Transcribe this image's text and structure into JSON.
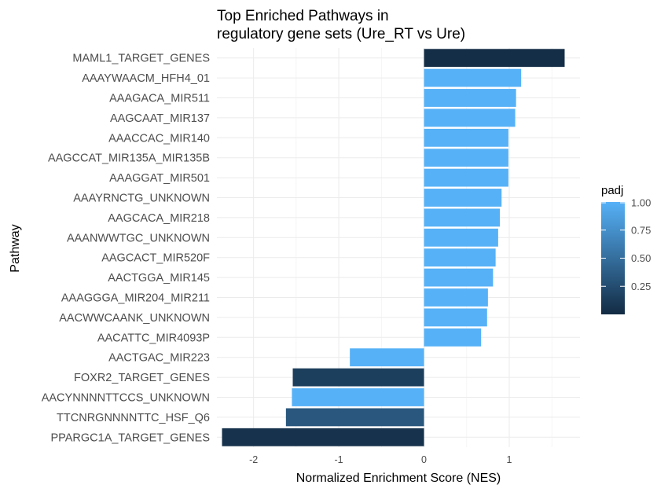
{
  "chart_data": {
    "type": "bar",
    "orientation": "horizontal",
    "title": "Top Enriched Pathways in\nregulatory gene sets (Ure_RT vs Ure)",
    "xlabel": "Normalized Enrichment Score (NES)",
    "ylabel": "Pathway",
    "xlim": [
      -2.43,
      1.83
    ],
    "xticks": [
      -2,
      -1,
      0,
      1
    ],
    "grid": true,
    "categories": [
      "MAML1_TARGET_GENES",
      "AAAYWAACM_HFH4_01",
      "AAAGACA_MIR511",
      "AAGCAAT_MIR137",
      "AAACCAC_MIR140",
      "AAGCCAT_MIR135A_MIR135B",
      "AAAGGAT_MIR501",
      "AAAYRNCTG_UNKNOWN",
      "AAGCACA_MIR218",
      "AAANWWTGC_UNKNOWN",
      "AAGCACT_MIR520F",
      "AACTGGA_MIR145",
      "AAAGGGA_MIR204_MIR211",
      "AACWWCAANK_UNKNOWN",
      "AACATTC_MIR4093P",
      "AACTGAC_MIR223",
      "FOXR2_TARGET_GENES",
      "AACYNNNNTTCCS_UNKNOWN",
      "TTCNRGNNNNTTC_HSF_Q6",
      "PPARGC1A_TARGET_GENES"
    ],
    "values": [
      1.65,
      1.14,
      1.08,
      1.07,
      0.99,
      0.99,
      0.99,
      0.91,
      0.89,
      0.87,
      0.84,
      0.81,
      0.75,
      0.74,
      0.67,
      -0.87,
      -1.54,
      -1.55,
      -1.62,
      -2.37
    ],
    "padj": [
      0.02,
      1.0,
      1.0,
      1.0,
      1.0,
      1.0,
      1.0,
      1.0,
      1.0,
      1.0,
      1.0,
      1.0,
      1.0,
      1.0,
      1.0,
      1.0,
      0.15,
      1.0,
      0.33,
      0.05
    ],
    "color_scale": {
      "title": "padj",
      "low_color": "#132B43",
      "high_color": "#56B1F7",
      "range": [
        0.0,
        1.0
      ],
      "ticks": [
        0.25,
        0.5,
        0.75,
        1.0
      ],
      "tick_labels": [
        "0.25",
        "0.50",
        "0.75",
        "1.00"
      ],
      "legend_position": "right"
    }
  }
}
